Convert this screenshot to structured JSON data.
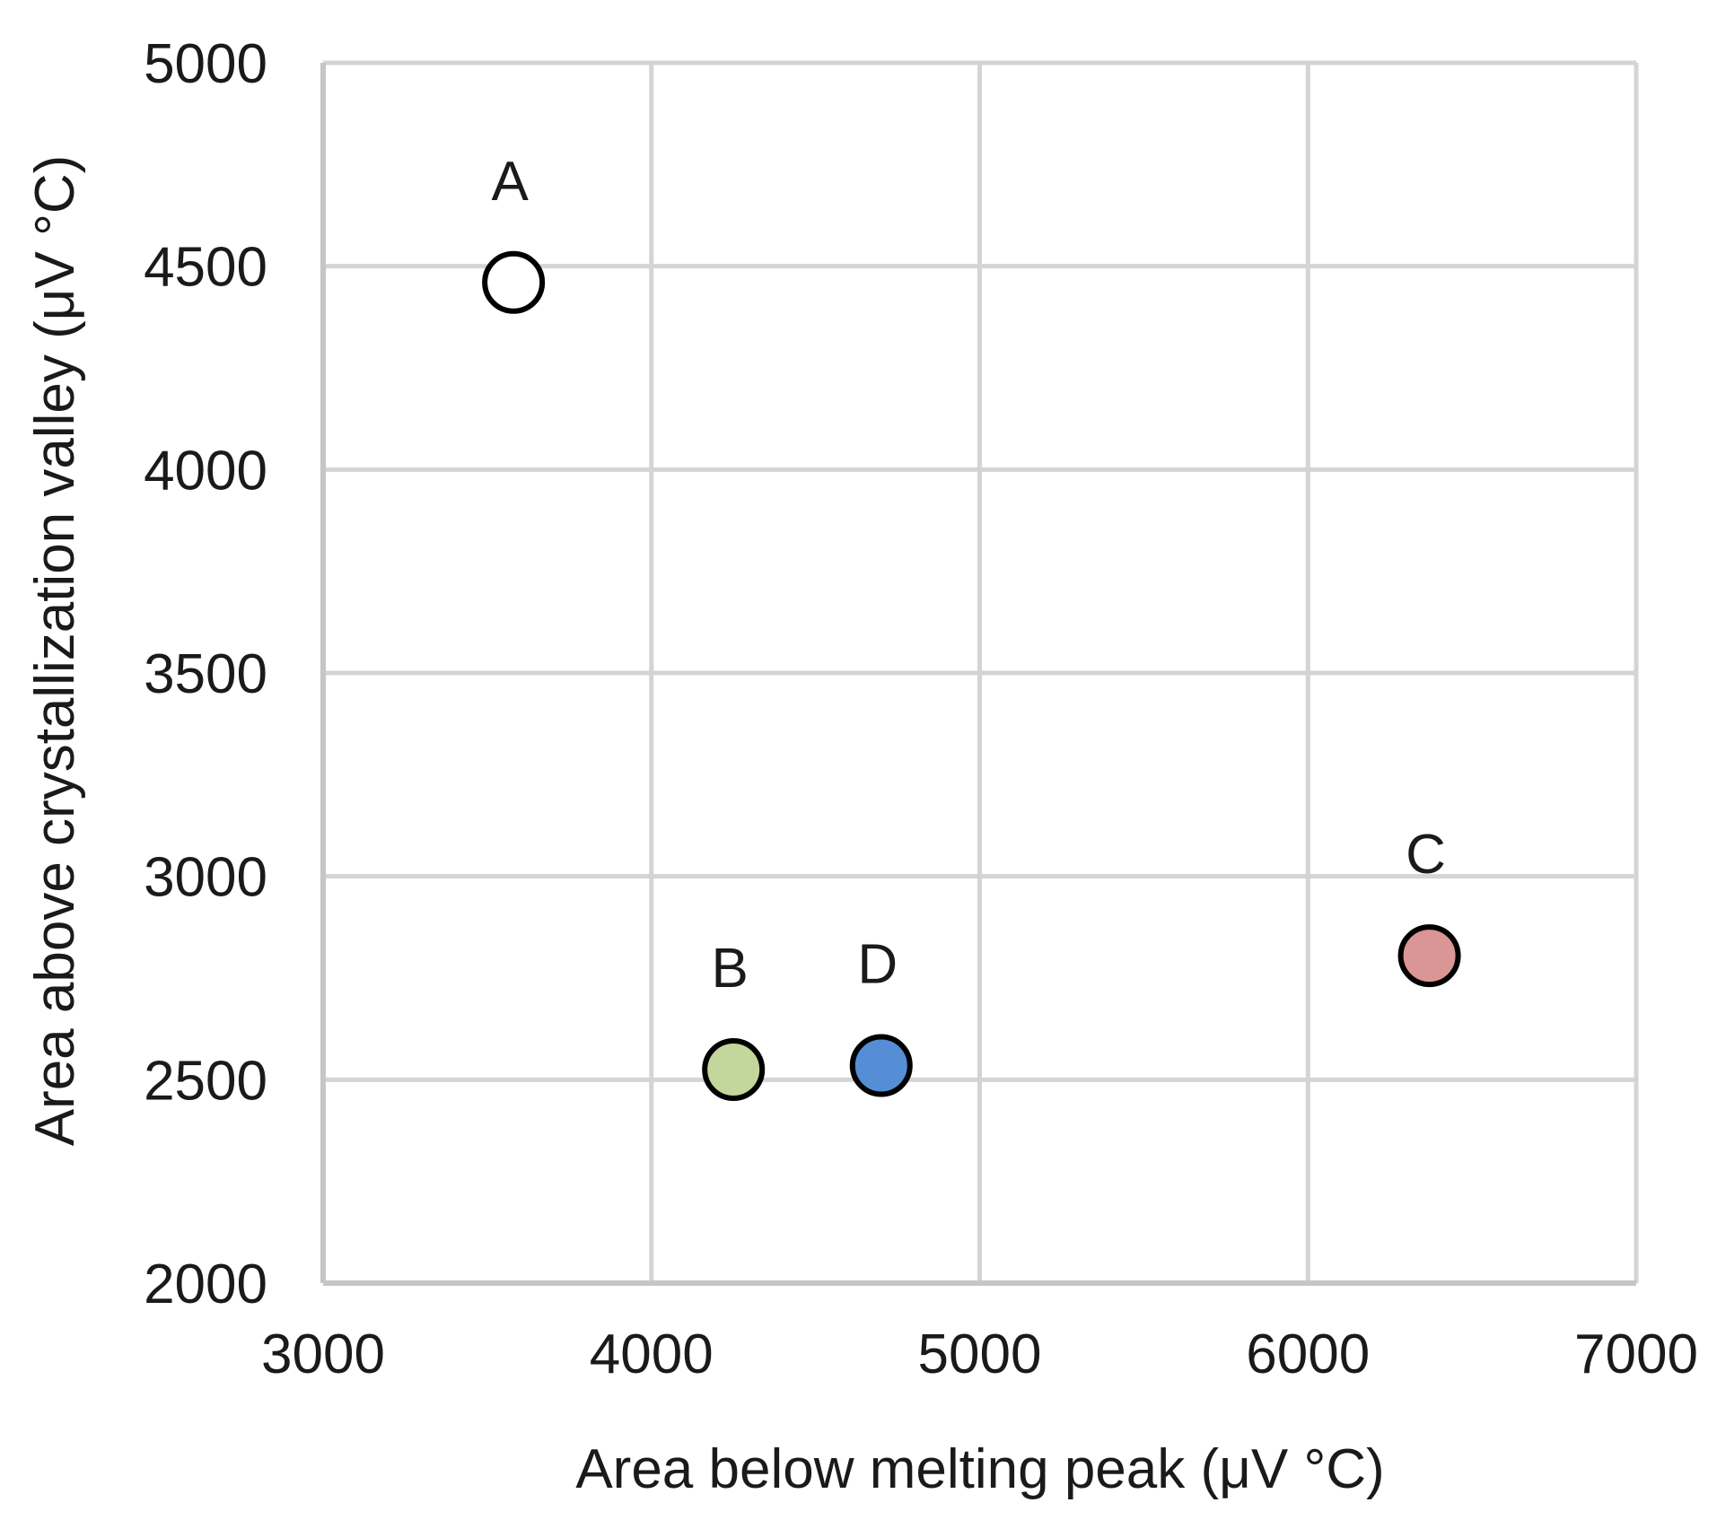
{
  "chart_data": {
    "type": "scatter",
    "title": "",
    "xlabel": "Area below melting peak (μV °C)",
    "ylabel": "Area above crystallization valley (μV °C)",
    "xlim": [
      3000,
      7000
    ],
    "ylim": [
      2000,
      5000
    ],
    "x_ticks": [
      3000,
      4000,
      5000,
      6000,
      7000
    ],
    "y_ticks": [
      2000,
      2500,
      3000,
      3500,
      4000,
      4500,
      5000
    ],
    "x_tick_labels": [
      "3000",
      "4000",
      "5000",
      "6000",
      "7000"
    ],
    "y_tick_labels": [
      "2000",
      "2500",
      "3000",
      "3500",
      "4000",
      "4500",
      "5000"
    ],
    "grid": true,
    "legend": "none",
    "points": [
      {
        "label": "A",
        "x": 3580,
        "y": 4460,
        "color": "#ffffff"
      },
      {
        "label": "B",
        "x": 4250,
        "y": 2525,
        "color": "#c3d69b"
      },
      {
        "label": "D",
        "x": 4700,
        "y": 2535,
        "color": "#558ed5"
      },
      {
        "label": "C",
        "x": 6370,
        "y": 2805,
        "color": "#d99694"
      }
    ]
  }
}
